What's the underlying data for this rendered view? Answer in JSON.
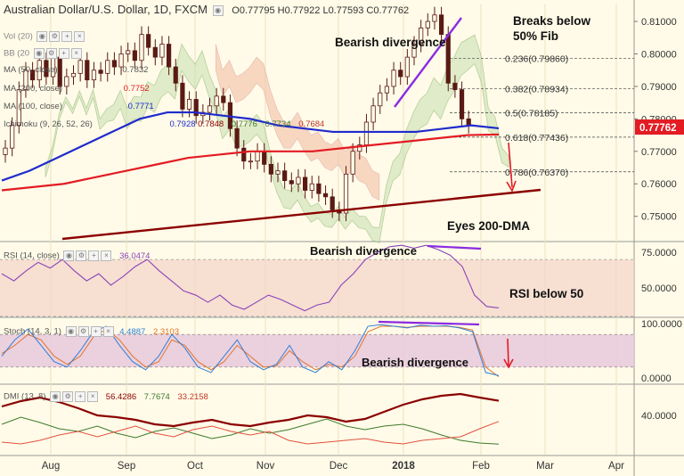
{
  "header": {
    "symbol": "Australian Dollar/U.S. Dollar, 1D, FXCM",
    "o_label": "O",
    "o": "0.77795",
    "h_label": "H",
    "h": "0.77922",
    "l_label": "L",
    "l": "0.77593",
    "c_label": "C",
    "c": "0.77762"
  },
  "indicators": {
    "vol": "Vol (20)",
    "bb": "BB (20",
    "ma50": {
      "label": "MA (50, close)",
      "value": "0.7832"
    },
    "ma200": {
      "label": "MA (200, close)",
      "value": "0.7752",
      "color": "#e31b23"
    },
    "ma100": {
      "label": "MA (100, close)",
      "value": "0.7771",
      "color": "#1f2bcc"
    },
    "ichimoku": {
      "label": "Ichimoku (9, 26, 52, 26)",
      "values": [
        "0.7928",
        "0.7848",
        "0.7776",
        "0.7734",
        "0.7684"
      ]
    },
    "rsi": {
      "label": "RSI (14, close)",
      "value": "36.0474"
    },
    "stoch": {
      "label": "Stoch (14, 3, 1)",
      "values": [
        "4.4887",
        "2.3103"
      ]
    },
    "dmi": {
      "label": "DMI (13, 8)",
      "values": [
        "56.4286",
        "7.7674",
        "33.2158"
      ]
    }
  },
  "annotations": {
    "breaks": [
      "Breaks below",
      "50% Fib"
    ],
    "bearish_main": "Bearish divergence",
    "eyes": "Eyes 200-DMA",
    "bearish_rsi": "Bearish divergence",
    "rsi_below": "RSI below 50",
    "bearish_stoch": "Bearish divergence"
  },
  "price_badge": "0.77762",
  "colors": {
    "background": "#fffbe8",
    "candle": "#5a1a14",
    "ma100": "#1f2bcc",
    "ma200": "#e31b23",
    "trendline": "#8b0000",
    "divergence": "#8a2be2",
    "cloud_green": "#c6deb0",
    "cloud_red": "#f4c8b0",
    "rsi": "#8a44b8",
    "stoch_k": "#2f7fd6",
    "stoch_d": "#e2752c",
    "adx": "#8b0000",
    "di_plus": "#3e7a2c",
    "di_minus": "#e3503e"
  },
  "chart_data": {
    "type": "line",
    "title": "Australian Dollar/U.S. Dollar, 1D, FXCM",
    "x_labels": [
      "Aug",
      "Sep",
      "Oct",
      "Nov",
      "Dec",
      "2018",
      "Feb",
      "Mar",
      "Apr"
    ],
    "price_axis": {
      "ticks": [
        "0.81000",
        "0.80000",
        "0.79000",
        "0.78000",
        "0.77000",
        "0.76000",
        "0.75000"
      ],
      "range": [
        0.7425,
        0.8155
      ]
    },
    "close": [
      0.771,
      0.778,
      0.789,
      0.795,
      0.792,
      0.798,
      0.793,
      0.799,
      0.79,
      0.793,
      0.794,
      0.798,
      0.792,
      0.795,
      0.794,
      0.798,
      0.796,
      0.8,
      0.801,
      0.798,
      0.806,
      0.802,
      0.799,
      0.803,
      0.796,
      0.791,
      0.783,
      0.786,
      0.781,
      0.782,
      0.784,
      0.787,
      0.785,
      0.777,
      0.771,
      0.767,
      0.767,
      0.77,
      0.766,
      0.763,
      0.764,
      0.761,
      0.76,
      0.762,
      0.758,
      0.76,
      0.757,
      0.756,
      0.752,
      0.751,
      0.763,
      0.77,
      0.772,
      0.779,
      0.784,
      0.788,
      0.79,
      0.795,
      0.793,
      0.799,
      0.803,
      0.808,
      0.81,
      0.812,
      0.806,
      0.791,
      0.789,
      0.78,
      0.778
    ],
    "fib_levels": [
      {
        "label": "0.236(0.79860)",
        "value": 0.7986
      },
      {
        "label": "0.382(0.78934)",
        "value": 0.78934
      },
      {
        "label": "0.5(0.78185)",
        "value": 0.78185
      },
      {
        "label": "0.618(0.77436)",
        "value": 0.77436
      },
      {
        "label": "0.786(0.76370)",
        "value": 0.7637
      }
    ],
    "ma100": [
      0.761,
      0.764,
      0.768,
      0.772,
      0.776,
      0.78,
      0.782,
      0.782,
      0.781,
      0.78,
      0.778,
      0.777,
      0.776,
      0.776,
      0.776,
      0.776,
      0.777,
      0.778,
      0.7771
    ],
    "ma200": [
      0.758,
      0.759,
      0.76,
      0.762,
      0.764,
      0.766,
      0.768,
      0.769,
      0.77,
      0.77,
      0.77,
      0.771,
      0.772,
      0.773,
      0.774,
      0.775,
      0.7752
    ],
    "rsi": {
      "axis": [
        "75.0000",
        "50.0000"
      ],
      "range": [
        30,
        82
      ],
      "bands": [
        70,
        30
      ],
      "values": [
        60,
        55,
        62,
        68,
        64,
        70,
        62,
        55,
        60,
        52,
        58,
        65,
        70,
        62,
        55,
        48,
        45,
        40,
        45,
        38,
        35,
        40,
        45,
        42,
        38,
        34,
        38,
        40,
        52,
        60,
        70,
        75,
        79,
        80,
        78,
        80,
        77,
        73,
        65,
        45,
        37,
        36
      ]
    },
    "stoch": {
      "axis": [
        "100.0000",
        "0.0000"
      ],
      "range": [
        0,
        100
      ],
      "bands": [
        80,
        20
      ],
      "k": [
        40,
        70,
        90,
        60,
        30,
        20,
        50,
        85,
        95,
        60,
        30,
        15,
        40,
        80,
        55,
        20,
        10,
        40,
        70,
        30,
        15,
        25,
        60,
        20,
        10,
        30,
        15,
        50,
        95,
        98,
        95,
        92,
        97,
        95,
        96,
        92,
        85,
        10,
        4.4887
      ],
      "d": [
        45,
        60,
        80,
        70,
        40,
        25,
        40,
        75,
        90,
        70,
        40,
        20,
        30,
        70,
        60,
        30,
        15,
        30,
        60,
        40,
        20,
        22,
        50,
        30,
        15,
        25,
        20,
        40,
        85,
        95,
        95,
        93,
        95,
        95,
        95,
        93,
        88,
        20,
        2.3103
      ]
    },
    "dmi": {
      "axis": [
        "40.0000"
      ],
      "range": [
        0,
        70
      ],
      "adx": [
        50,
        56,
        60,
        55,
        48,
        40,
        38,
        35,
        30,
        28,
        32,
        35,
        30,
        28,
        32,
        35,
        40,
        38,
        33,
        36,
        44,
        52,
        58,
        62,
        64,
        60,
        56.4286
      ],
      "di_plus": [
        30,
        38,
        32,
        25,
        22,
        28,
        20,
        15,
        22,
        26,
        20,
        14,
        18,
        25,
        20,
        24,
        30,
        36,
        28,
        24,
        28,
        30,
        25,
        18,
        12,
        9,
        7.7674
      ],
      "di_minus": [
        10,
        8,
        12,
        18,
        22,
        16,
        22,
        28,
        20,
        16,
        24,
        28,
        22,
        18,
        22,
        12,
        8,
        10,
        12,
        14,
        10,
        8,
        12,
        14,
        16,
        25,
        33.2158
      ]
    }
  }
}
